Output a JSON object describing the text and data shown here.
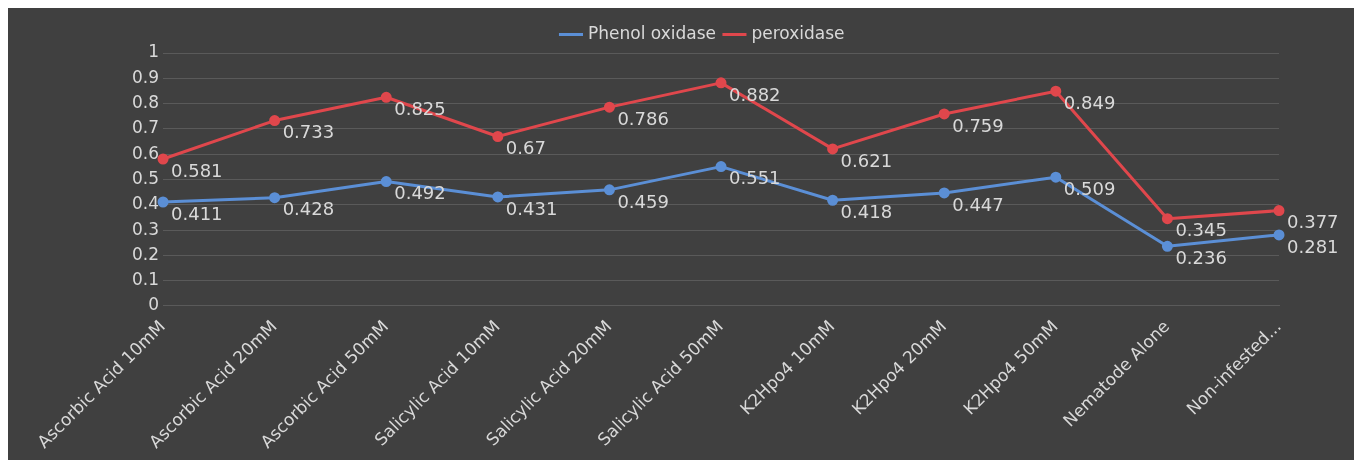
{
  "chart_data": {
    "type": "line",
    "categories": [
      "Ascorbic Acid 10mM",
      "Ascorbic Acid 20mM",
      "Ascorbic Acid 50mM",
      "Salicylic Acid 10mM",
      "Salicylic Acid 20mM",
      "Salicylic Acid 50mM",
      "K2Hpo4 10mM",
      "K2Hpo4 20mM",
      "K2Hpo4 50mM",
      "Nematode Alone",
      "Non-infested..."
    ],
    "series": [
      {
        "name": "Phenol oxidase",
        "color": "#5b8fd6",
        "values": [
          0.411,
          0.428,
          0.492,
          0.431,
          0.459,
          0.551,
          0.418,
          0.447,
          0.509,
          0.236,
          0.281
        ]
      },
      {
        "name": "peroxidase",
        "color": "#e0474c",
        "values": [
          0.581,
          0.733,
          0.825,
          0.67,
          0.786,
          0.882,
          0.621,
          0.759,
          0.849,
          0.345,
          0.377
        ]
      }
    ],
    "ylim": [
      0,
      1
    ],
    "yticks": [
      0,
      0.1,
      0.2,
      0.3,
      0.4,
      0.5,
      0.6,
      0.7,
      0.8,
      0.9,
      1
    ],
    "grid": "y",
    "legend": "top",
    "marker": "circle",
    "line_style": "solid",
    "data_labels": true
  }
}
